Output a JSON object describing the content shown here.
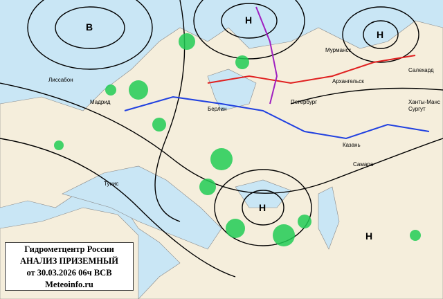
{
  "title_box": {
    "line1": "Гидрометцентр России",
    "line2": "АНАЛИЗ ПРИЗЕМНЫЙ",
    "line3": "от 30.03.2026 06ч ВСВ",
    "line4": "Meteoinfo.ru"
  },
  "pressure_centers": [
    {
      "label": "В",
      "color": "#000000"
    },
    {
      "label": "Н",
      "color": "#000000"
    },
    {
      "label": "Н",
      "color": "#000000"
    },
    {
      "label": "Н",
      "color": "#000000"
    },
    {
      "label": "Н",
      "color": "#000000"
    }
  ],
  "cities": [
    "Мурманск",
    "Архангельск",
    "Петербург",
    "Берлин",
    "Казань",
    "Самара",
    "Мадрид",
    "Тунис",
    "Лиссабон",
    "Салехард",
    "Сургут",
    "Ханты-Манс"
  ],
  "colors": {
    "sea": "#c9e6f5",
    "land": "#f5eedc",
    "isobar": "#000000",
    "warm_front": "#e02020",
    "cold_front": "#2040e0",
    "precip": "#22cc55",
    "station_value": "#e0208a"
  }
}
